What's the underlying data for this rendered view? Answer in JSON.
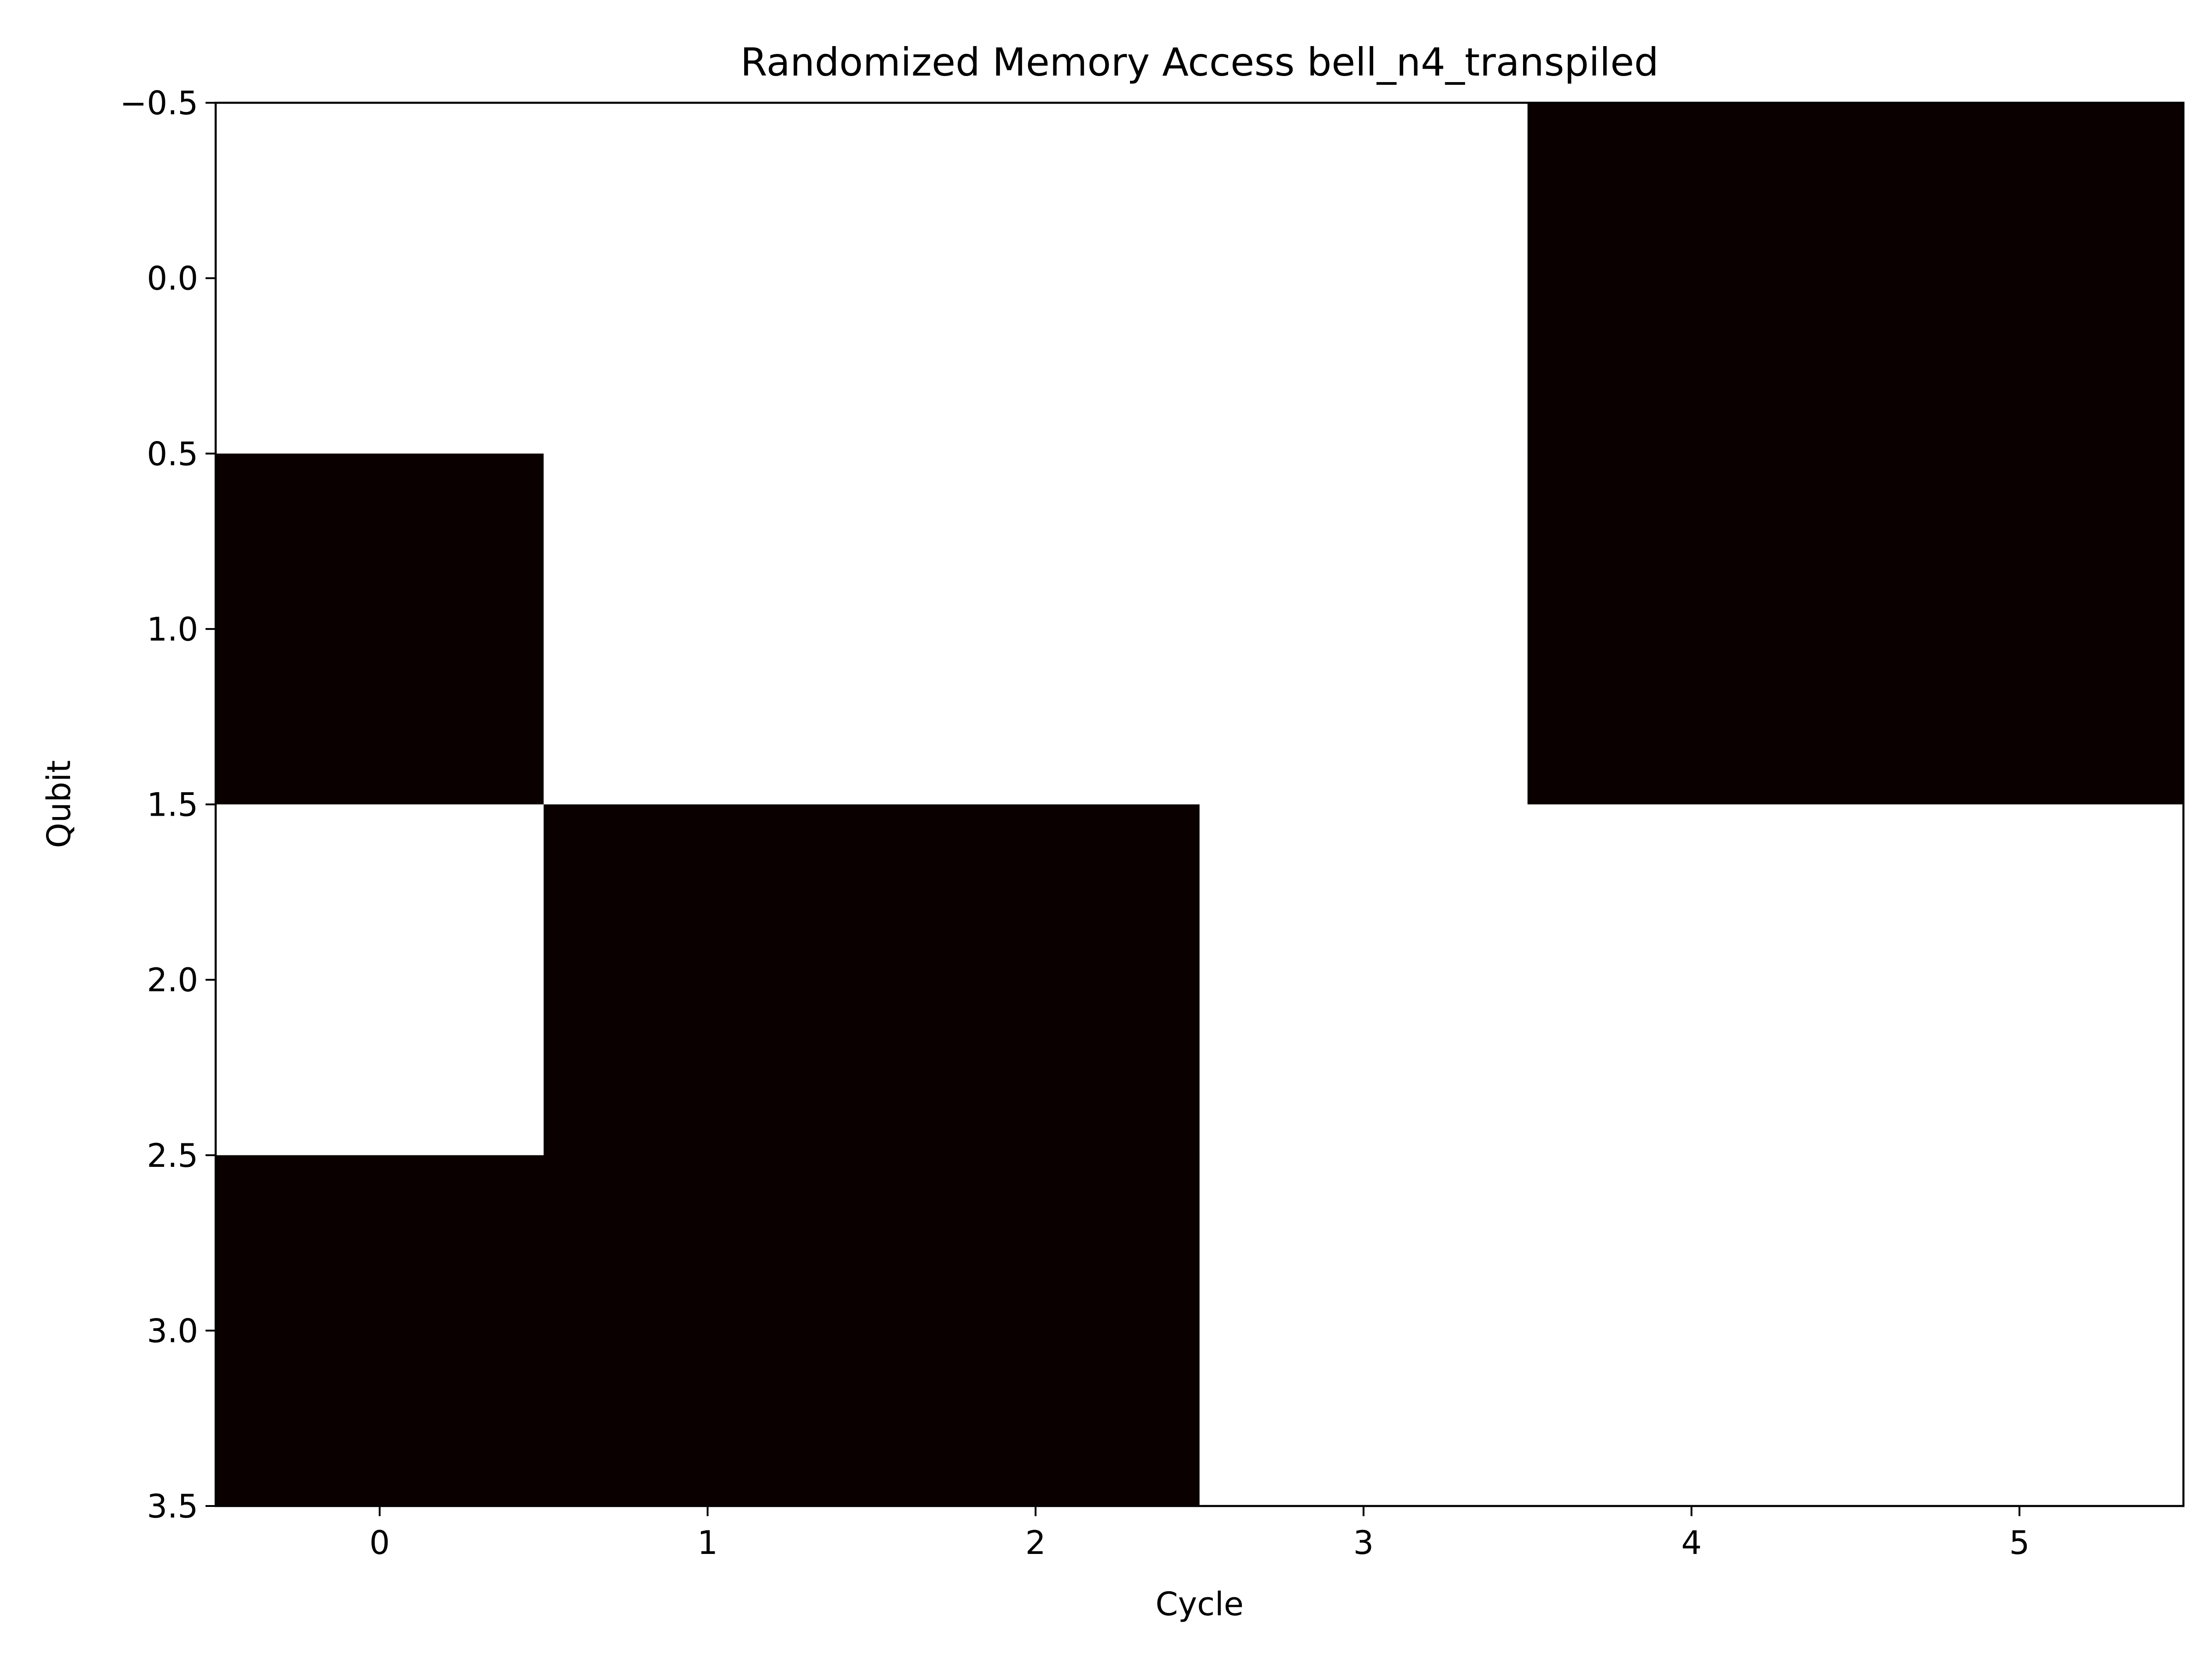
{
  "chart_data": {
    "type": "heatmap",
    "title": "Randomized Memory Access bell_n4_transpiled",
    "xlabel": "Cycle",
    "ylabel": "Qubit",
    "x_categories": [
      0,
      1,
      2,
      3,
      4,
      5
    ],
    "y_categories": [
      0,
      1,
      2,
      3
    ],
    "xlim": [
      -0.5,
      5.5
    ],
    "ylim": [
      3.5,
      -0.5
    ],
    "x_ticks": [
      "0",
      "1",
      "2",
      "3",
      "4",
      "5"
    ],
    "y_ticks": [
      "−0.5",
      "0.0",
      "0.5",
      "1.0",
      "1.5",
      "2.0",
      "2.5",
      "3.0",
      "3.5"
    ],
    "y_tick_values": [
      -0.5,
      0.0,
      0.5,
      1.0,
      1.5,
      2.0,
      2.5,
      3.0,
      3.5
    ],
    "grid": false,
    "legend": false,
    "colormap": "hot",
    "colors": {
      "low": "#0b0000",
      "high": "#ffffff",
      "axes": "#000000"
    },
    "values": [
      [
        1,
        1,
        1,
        1,
        0,
        0
      ],
      [
        0,
        1,
        1,
        1,
        0,
        0
      ],
      [
        1,
        0,
        0,
        1,
        1,
        1
      ],
      [
        0,
        0,
        0,
        1,
        1,
        1
      ]
    ]
  }
}
